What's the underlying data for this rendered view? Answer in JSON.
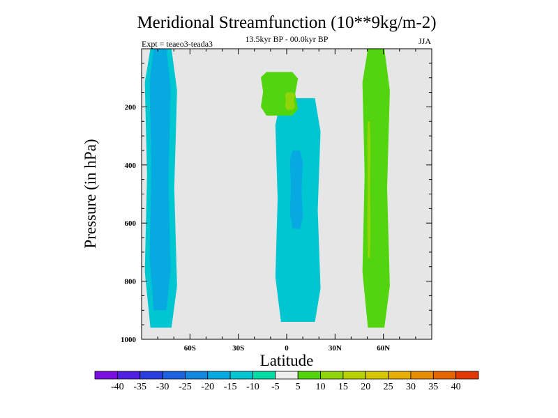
{
  "chart_data": {
    "type": "contour",
    "title": "Meridional Streamfunction (10**9kg/m-2)",
    "subtitle": "13.5kyr BP - 00.0kyr BP",
    "left_note": "Expt = teaeo3-teada3",
    "right_note": "JJA",
    "xlabel": "Latitude",
    "ylabel": "Pressure (in hPa)",
    "xlim": [
      -90,
      90
    ],
    "ylim": [
      0,
      1000
    ],
    "x_ticks": [
      {
        "value": -60,
        "label": "60S"
      },
      {
        "value": -30,
        "label": "30S"
      },
      {
        "value": 0,
        "label": "0"
      },
      {
        "value": 30,
        "label": "30N"
      },
      {
        "value": 60,
        "label": "60N"
      }
    ],
    "y_ticks": [
      {
        "value": 200,
        "label": "200"
      },
      {
        "value": 400,
        "label": "400"
      },
      {
        "value": 600,
        "label": "600"
      },
      {
        "value": 800,
        "label": "800"
      },
      {
        "value": 1000,
        "label": "1000"
      }
    ],
    "regions": [
      {
        "name": "southern-cell",
        "level": "-10",
        "lat": [
          -88,
          -68
        ],
        "p": [
          0,
          960
        ]
      },
      {
        "name": "southern-cell-core",
        "level": "-15",
        "lat": [
          -85,
          -72
        ],
        "p": [
          0,
          900
        ]
      },
      {
        "name": "equatorial-cell",
        "level": "-10",
        "lat": [
          -7,
          21
        ],
        "p": [
          170,
          940
        ]
      },
      {
        "name": "equatorial-cell-core",
        "level": "-15",
        "lat": [
          2,
          10
        ],
        "p": [
          350,
          620
        ]
      },
      {
        "name": "northern-cell",
        "level": "5",
        "lat": [
          47,
          64
        ],
        "p": [
          0,
          960
        ]
      },
      {
        "name": "northern-cell-core",
        "level": "10",
        "lat": [
          50,
          52
        ],
        "p": [
          250,
          720
        ]
      },
      {
        "name": "tropical-upper-cell",
        "level": "5",
        "lat": [
          -16,
          7
        ],
        "p": [
          80,
          230
        ]
      },
      {
        "name": "tropical-upper-core",
        "level": "10",
        "lat": [
          -1,
          5
        ],
        "p": [
          150,
          210
        ]
      }
    ],
    "colorbar": {
      "labels": [
        "-40",
        "-35",
        "-30",
        "-25",
        "-20",
        "-15",
        "-10",
        "-5",
        "5",
        "10",
        "15",
        "20",
        "25",
        "30",
        "35",
        "40"
      ],
      "colors": [
        "#7b0fe0",
        "#5020e0",
        "#2a3ee0",
        "#1d62e0",
        "#1487e0",
        "#06a9e0",
        "#00c6d2",
        "#00dca6",
        "#eeeeee",
        "#52d40e",
        "#8fd50a",
        "#b8d200",
        "#d6c800",
        "#e6ae00",
        "#e88c00",
        "#e56600",
        "#e03a00"
      ]
    },
    "background_color": "#e6e6e6"
  }
}
